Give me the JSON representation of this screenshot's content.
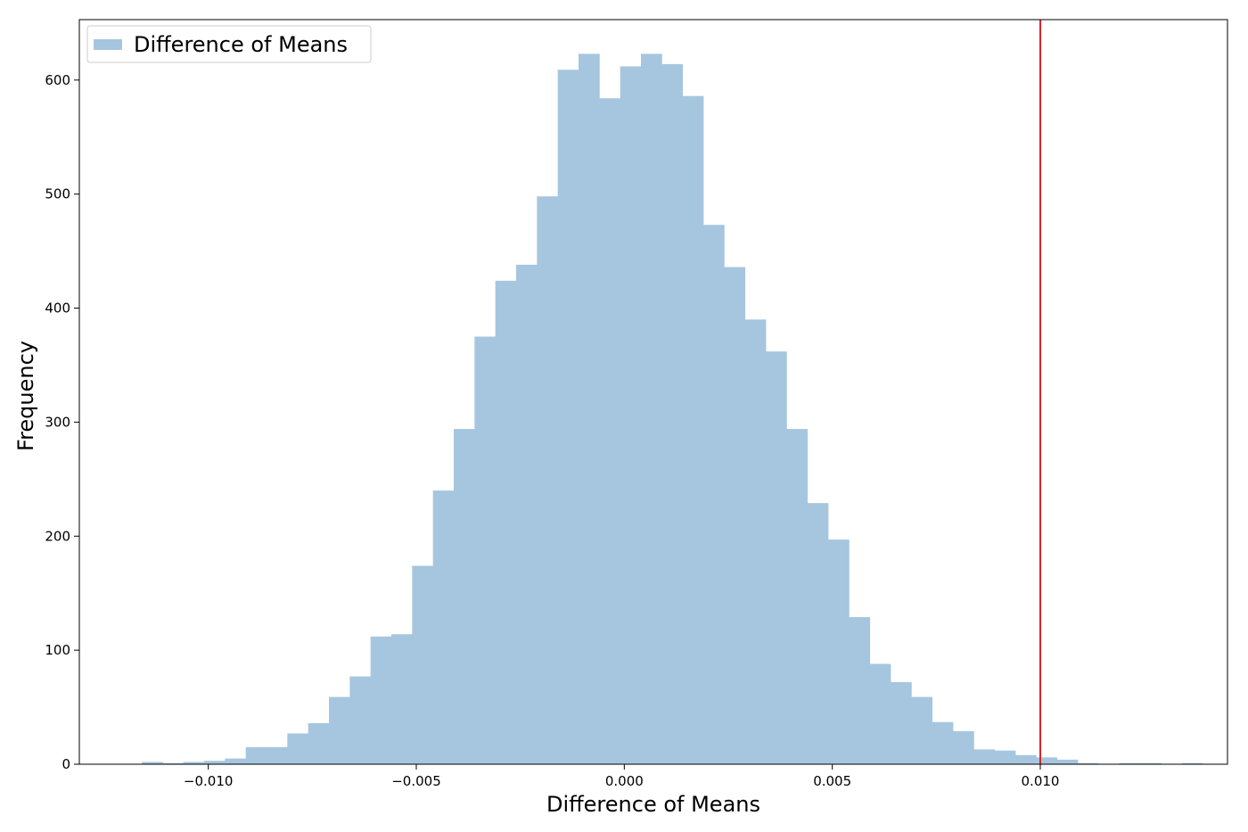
{
  "chart_data": {
    "type": "bar",
    "xlabel": "Difference of Means",
    "ylabel": "Frequency",
    "xlim": [
      -0.0131,
      0.0145
    ],
    "ylim": [
      0,
      653
    ],
    "x_ticks": [
      -0.01,
      -0.005,
      0.0,
      0.005,
      0.01
    ],
    "x_tick_labels": [
      "−0.010",
      "−0.005",
      "0.000",
      "0.005",
      "0.010"
    ],
    "y_ticks": [
      0,
      100,
      200,
      300,
      400,
      500,
      600
    ],
    "y_tick_labels": [
      "0",
      "100",
      "200",
      "300",
      "400",
      "500",
      "600"
    ],
    "legend": {
      "position": "upper-left",
      "entries": [
        {
          "label": "Difference of Means"
        }
      ]
    },
    "grid": false,
    "colors": {
      "bars": "#a6c6df",
      "vline": "#d62728",
      "axis": "#000000"
    },
    "histogram": {
      "bin_start": -0.0116,
      "bin_width": 0.0005,
      "counts": [
        2,
        1,
        2,
        3,
        5,
        15,
        15,
        27,
        36,
        59,
        77,
        112,
        114,
        174,
        240,
        294,
        375,
        424,
        438,
        498,
        609,
        623,
        584,
        612,
        623,
        614,
        586,
        473,
        436,
        390,
        362,
        294,
        229,
        197,
        129,
        88,
        72,
        59,
        37,
        29,
        13,
        12,
        8,
        6,
        4,
        1,
        0,
        1,
        1,
        0,
        1
      ]
    },
    "vline": {
      "x": 0.01
    }
  }
}
